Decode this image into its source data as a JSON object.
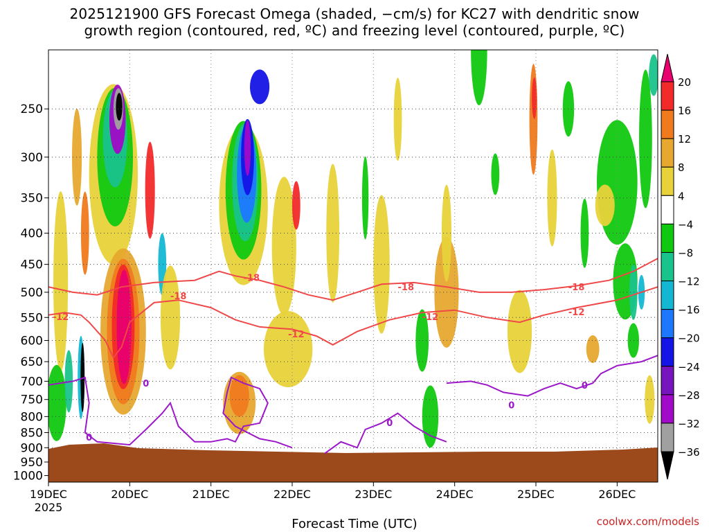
{
  "title_lines": [
    "2025121900 GFS Forecast Omega (shaded, −cm/s) for KC27 with dendritic snow",
    "growth region (contoured, red, ºC) and freezing level (contoured, purple, ºC)"
  ],
  "credit": "coolwx.com/models",
  "chart_data": {
    "type": "heatmap",
    "title": "2025121900 GFS Forecast Omega (shaded, −cm/s) for KC27 with dendritic snow growth region (contoured, red, ºC) and freezing level (contoured, purple, ºC)",
    "xlabel": "Forecast Time (UTC)",
    "ylabel": "",
    "x_ticks": [
      "19DEC",
      "20DEC",
      "21DEC",
      "22DEC",
      "23DEC",
      "24DEC",
      "25DEC",
      "26DEC"
    ],
    "x_year": "2025",
    "xlim_days": [
      19,
      26.5
    ],
    "y_ticks": [
      250,
      300,
      350,
      400,
      450,
      500,
      550,
      600,
      650,
      700,
      750,
      800,
      850,
      900,
      950,
      1000
    ],
    "ylim": [
      200,
      1025
    ],
    "y_scale": "log",
    "grid": true,
    "colorbar": {
      "labels": [
        "20",
        "16",
        "12",
        "8",
        "4",
        "−4",
        "−8",
        "−12",
        "−16",
        "−20",
        "−24",
        "−28",
        "−32",
        "−36"
      ],
      "colors": [
        "#e8006e",
        "#f22a2a",
        "#f07a1e",
        "#e6a82e",
        "#e8d23a",
        "#ffffff",
        "#11c811",
        "#19c38c",
        "#14b7d2",
        "#1e78ff",
        "#1414e6",
        "#7814be",
        "#a00ac8",
        "#a0a0a0",
        "#000000"
      ]
    },
    "contours": [
      {
        "level": "-18",
        "color": "#f04848",
        "label_points": [
          [
            20.6,
            507
          ],
          [
            21.5,
            473
          ],
          [
            23.4,
            490
          ],
          [
            25.5,
            490
          ]
        ]
      },
      {
        "level": "-12",
        "color": "#f04848",
        "label_points": [
          [
            19.15,
            548
          ],
          [
            22.05,
            585
          ],
          [
            23.7,
            548
          ],
          [
            25.5,
            538
          ]
        ]
      },
      {
        "level": "0",
        "color": "#9b18c8",
        "label_points": [
          [
            20.2,
            705
          ],
          [
            19.5,
            865
          ],
          [
            23.2,
            818
          ],
          [
            24.7,
            765
          ],
          [
            25.6,
            710
          ]
        ]
      }
    ]
  }
}
